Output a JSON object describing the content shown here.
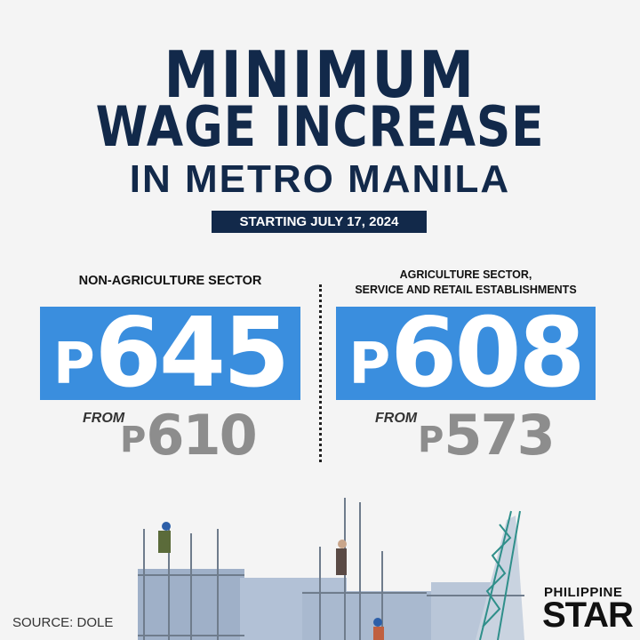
{
  "header": {
    "title_line1": "MINIMUM",
    "title_line2": "WAGE INCREASE",
    "subtitle": "IN METRO MANILA",
    "effective_date": "STARTING JULY 17, 2024"
  },
  "sectors": [
    {
      "label_lines": [
        "NON-AGRICULTURE SECTOR"
      ],
      "currency": "P",
      "new_wage": "645",
      "from_label": "FROM",
      "old_wage": "610"
    },
    {
      "label_lines": [
        "AGRICULTURE SECTOR,",
        "SERVICE AND RETAIL ESTABLISHMENTS"
      ],
      "currency": "P",
      "new_wage": "608",
      "from_label": "FROM",
      "old_wage": "573"
    }
  ],
  "footer": {
    "source": "SOURCE: DOLE",
    "logo_line1": "PHILIPPINE",
    "logo_line2": "STAR"
  },
  "colors": {
    "navy": "#12294a",
    "blue": "#3a8ede",
    "gray": "#8d8d8d",
    "background": "#f4f4f4"
  }
}
